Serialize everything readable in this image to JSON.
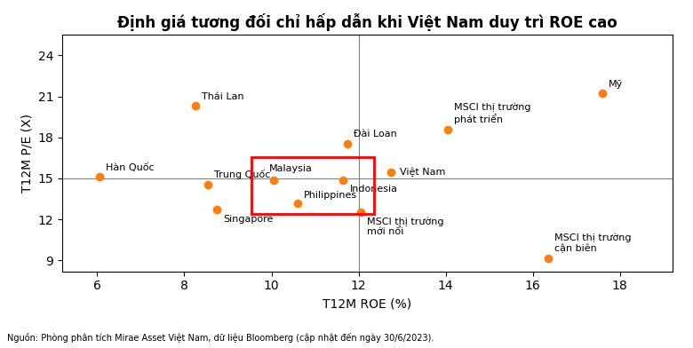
{
  "chart_data": {
    "type": "scatter",
    "title": "Định giá tương đối chỉ hấp dẫn khi Việt Nam duy trì ROE cao",
    "xlabel": "T12M ROE (%)",
    "ylabel": "T12M P/E (X)",
    "footnote": "Nguồn: Phòng phân tích Mirae Asset Việt Nam, dữ liệu Bloomberg (cập nhật đến ngày 30/6/2023).",
    "labels": [
      "Hàn Quốc",
      "Thái Lan",
      "Trung Quốc",
      "Singapore",
      "Malaysia",
      "Philippines",
      "Indonesia",
      "Đài Loan",
      "Việt Nam",
      "MSCI thị trường\nmới nổi",
      "MSCI thị trường\nphát triển",
      "MSCI thị trường\ncận biên",
      "Mỹ"
    ],
    "x": [
      6.05,
      8.25,
      8.55,
      8.75,
      10.05,
      10.6,
      11.65,
      11.75,
      12.75,
      12.05,
      14.05,
      16.35,
      17.6
    ],
    "y": [
      15.1,
      20.3,
      14.55,
      12.7,
      14.85,
      13.2,
      14.9,
      17.55,
      15.45,
      12.55,
      18.6,
      9.15,
      21.2
    ],
    "xlim": [
      5.2,
      19.2
    ],
    "ylim": [
      8.2,
      25.5
    ],
    "xticks": [
      6,
      8,
      10,
      12,
      14,
      16,
      18
    ],
    "yticks": [
      9,
      12,
      15,
      18,
      21,
      24
    ],
    "hline_y": 15,
    "vline_x": 12,
    "highlight": {
      "x0": 9.55,
      "y0": 12.4,
      "width": 2.8,
      "height": 4.15,
      "color": "red"
    },
    "grid": false
  }
}
